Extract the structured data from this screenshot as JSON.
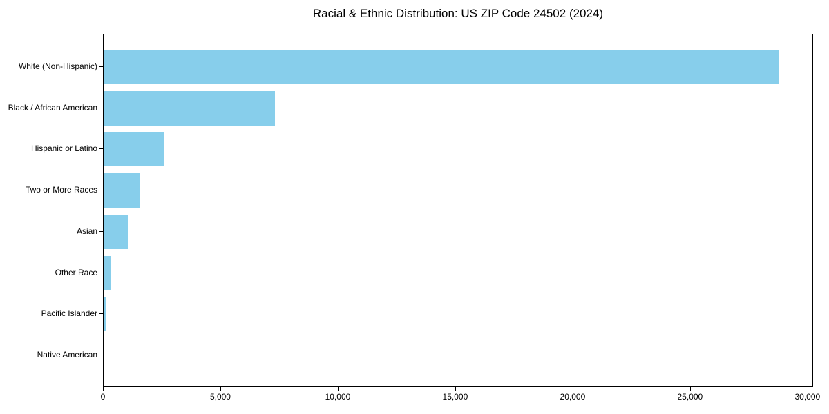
{
  "chart_data": {
    "type": "bar",
    "orientation": "horizontal",
    "title": "Racial & Ethnic Distribution: US ZIP Code 24502 (2024)",
    "categories": [
      "White (Non-Hispanic)",
      "Black / African American",
      "Hispanic or Latino",
      "Two or More Races",
      "Asian",
      "Other Race",
      "Pacific Islander",
      "Native American"
    ],
    "values": [
      28800,
      7300,
      2590,
      1540,
      1050,
      300,
      130,
      0
    ],
    "xlabel": "",
    "ylabel": "",
    "xlim": [
      0,
      30240
    ],
    "xticks": [
      0,
      5000,
      10000,
      15000,
      20000,
      25000,
      30000
    ],
    "xtick_labels": [
      "0",
      "5,000",
      "10,000",
      "15,000",
      "20,000",
      "25,000",
      "30,000"
    ],
    "bar_color": "#87CEEB",
    "background_color": "#FFFFFF",
    "grid": false,
    "legend": null
  }
}
